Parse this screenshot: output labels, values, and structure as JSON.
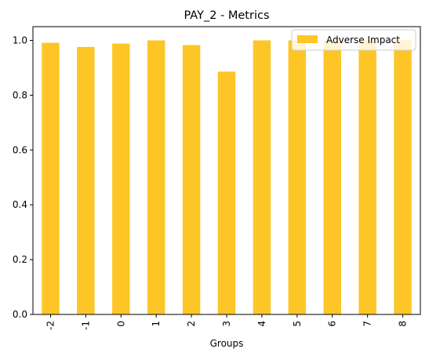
{
  "chart_data": {
    "type": "bar",
    "title": "PAY_2 - Metrics",
    "xlabel": "Groups",
    "ylabel": "",
    "categories": [
      "-2",
      "-1",
      "0",
      "1",
      "2",
      "3",
      "4",
      "5",
      "6",
      "7",
      "8"
    ],
    "series": [
      {
        "name": "Adverse Impact",
        "color": "#fdc626",
        "values": [
          0.991,
          0.976,
          0.988,
          1.0,
          0.983,
          0.886,
          1.0,
          1.0,
          1.0,
          1.0,
          1.0
        ]
      }
    ],
    "ylim": [
      0,
      1.05
    ],
    "yticks": [
      "0.0",
      "0.2",
      "0.4",
      "0.6",
      "0.8",
      "1.0"
    ],
    "grid": false,
    "legend_position": "top-right"
  }
}
